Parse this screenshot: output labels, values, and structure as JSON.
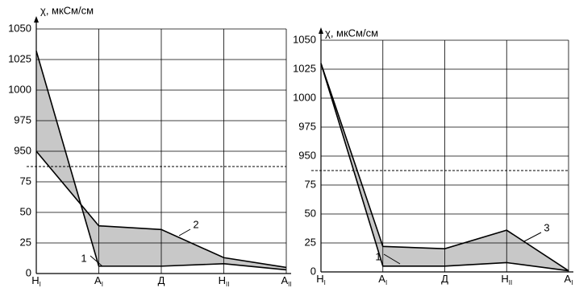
{
  "chart_data": [
    {
      "type": "line",
      "y_axis_label": "χ, мкСм/см",
      "categories": [
        "Н",
        "А",
        "Д",
        "Н",
        "А"
      ],
      "subscripts": [
        "I",
        "I",
        null,
        "II",
        "II"
      ],
      "series": [
        {
          "name": "1",
          "color": "#000000",
          "values": [
            1032,
            6,
            6,
            8,
            3
          ]
        },
        {
          "name": "2",
          "color": "#000000",
          "values": [
            950,
            39,
            36,
            13,
            5
          ]
        }
      ],
      "fill_between_color": "#c8c8c8",
      "ylim_lower": [
        0,
        87.5
      ],
      "ylim_upper": [
        937.5,
        1050
      ],
      "yticks": [
        0,
        25,
        50,
        75,
        950,
        975,
        1000,
        1025,
        1050
      ],
      "grid": true
    },
    {
      "type": "line",
      "y_axis_label": "χ, мкСм/см",
      "categories": [
        "Н",
        "А",
        "Д",
        "Н",
        "А"
      ],
      "subscripts": [
        "I",
        "I",
        null,
        "II",
        "I"
      ],
      "series": [
        {
          "name": "1",
          "color": "#000000",
          "values": [
            1030,
            5,
            5,
            8,
            1
          ]
        },
        {
          "name": "3",
          "color": "#000000",
          "values": [
            1030,
            22,
            20,
            36,
            1
          ]
        }
      ],
      "fill_between_color": "#c8c8c8",
      "ylim_lower": [
        0,
        87.5
      ],
      "ylim_upper": [
        937.5,
        1050
      ],
      "yticks": [
        0,
        25,
        50,
        75,
        950,
        975,
        1000,
        1025,
        1050
      ],
      "grid": true
    }
  ]
}
